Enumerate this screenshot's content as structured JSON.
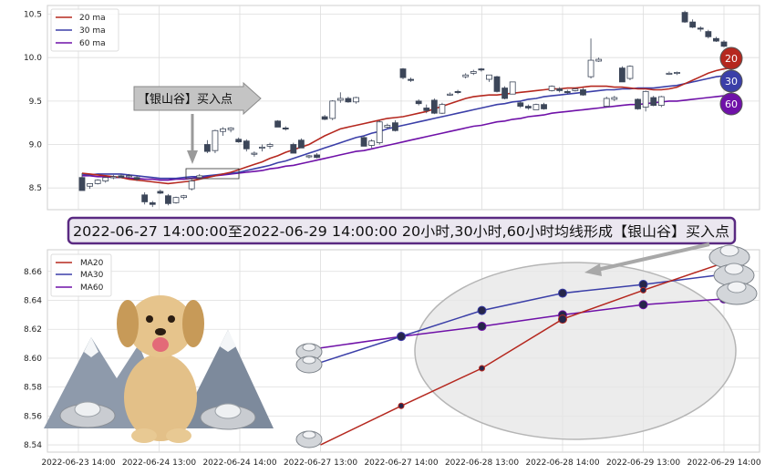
{
  "colors": {
    "ma20": "#b5281f",
    "ma30": "#3b3fa8",
    "ma60": "#6f11a8",
    "candle_dark": "#3c4659",
    "banner_border": "#5a2a82",
    "banner_fill": "#ebe7f0",
    "grid": "#dddddd"
  },
  "chart_data": [
    {
      "type": "candlestick",
      "legend": [
        "20 ma",
        "30 ma",
        "60 ma"
      ],
      "legend_position": "top-left",
      "ylim": [
        8.25,
        10.6
      ],
      "yticks": [
        "10.5",
        "10.0",
        "9.5",
        "9.0",
        "8.5"
      ],
      "grid": true,
      "callout_label": "【银山谷】买入点",
      "end_markers": [
        "20",
        "30",
        "60"
      ],
      "candles": [
        {
          "o": 8.62,
          "h": 8.67,
          "l": 8.48,
          "c": 8.47
        },
        {
          "o": 8.52,
          "h": 8.55,
          "l": 8.49,
          "c": 8.55
        },
        {
          "o": 8.55,
          "h": 8.6,
          "l": 8.54,
          "c": 8.59
        },
        {
          "o": 8.58,
          "h": 8.63,
          "l": 8.56,
          "c": 8.62
        },
        {
          "o": 8.62,
          "h": 8.65,
          "l": 8.6,
          "c": 8.63
        },
        {
          "o": 8.64,
          "h": 8.66,
          "l": 8.62,
          "c": 8.62
        },
        {
          "o": 8.63,
          "h": 8.66,
          "l": 8.61,
          "c": 8.64
        },
        {
          "o": 8.62,
          "h": 8.64,
          "l": 8.58,
          "c": 8.6
        },
        {
          "o": 8.42,
          "h": 8.45,
          "l": 8.31,
          "c": 8.34
        },
        {
          "o": 8.33,
          "h": 8.35,
          "l": 8.28,
          "c": 8.31
        },
        {
          "o": 8.46,
          "h": 8.48,
          "l": 8.43,
          "c": 8.44
        },
        {
          "o": 8.41,
          "h": 8.43,
          "l": 8.3,
          "c": 8.32
        },
        {
          "o": 8.33,
          "h": 8.4,
          "l": 8.32,
          "c": 8.39
        },
        {
          "o": 8.39,
          "h": 8.42,
          "l": 8.37,
          "c": 8.41
        },
        {
          "o": 8.49,
          "h": 8.6,
          "l": 8.47,
          "c": 8.58
        },
        {
          "o": 8.62,
          "h": 8.66,
          "l": 8.6,
          "c": 8.64
        },
        {
          "o": 9.0,
          "h": 9.05,
          "l": 8.9,
          "c": 8.92
        },
        {
          "o": 8.93,
          "h": 9.17,
          "l": 8.9,
          "c": 9.16
        },
        {
          "o": 9.15,
          "h": 9.2,
          "l": 9.1,
          "c": 9.18
        },
        {
          "o": 9.17,
          "h": 9.2,
          "l": 9.14,
          "c": 9.19
        },
        {
          "o": 9.06,
          "h": 9.08,
          "l": 9.02,
          "c": 9.03
        },
        {
          "o": 9.04,
          "h": 9.06,
          "l": 8.92,
          "c": 8.95
        },
        {
          "o": 8.89,
          "h": 8.92,
          "l": 8.86,
          "c": 8.9
        },
        {
          "o": 8.96,
          "h": 9.0,
          "l": 8.92,
          "c": 8.97
        },
        {
          "o": 8.98,
          "h": 9.02,
          "l": 8.95,
          "c": 9.0
        },
        {
          "o": 9.27,
          "h": 9.28,
          "l": 9.2,
          "c": 9.2
        },
        {
          "o": 9.19,
          "h": 9.21,
          "l": 9.16,
          "c": 9.18
        },
        {
          "o": 9.0,
          "h": 9.02,
          "l": 8.9,
          "c": 8.9
        },
        {
          "o": 9.05,
          "h": 9.07,
          "l": 8.96,
          "c": 8.96
        },
        {
          "o": 8.86,
          "h": 8.88,
          "l": 8.84,
          "c": 8.87
        },
        {
          "o": 8.88,
          "h": 8.9,
          "l": 8.84,
          "c": 8.85
        },
        {
          "o": 9.32,
          "h": 9.34,
          "l": 9.28,
          "c": 9.29
        },
        {
          "o": 9.3,
          "h": 9.51,
          "l": 9.28,
          "c": 9.5
        },
        {
          "o": 9.51,
          "h": 9.6,
          "l": 9.48,
          "c": 9.53
        },
        {
          "o": 9.53,
          "h": 9.55,
          "l": 9.48,
          "c": 9.49
        },
        {
          "o": 9.49,
          "h": 9.55,
          "l": 9.47,
          "c": 9.54
        },
        {
          "o": 9.08,
          "h": 9.1,
          "l": 8.98,
          "c": 8.98
        },
        {
          "o": 8.99,
          "h": 9.06,
          "l": 8.96,
          "c": 9.04
        },
        {
          "o": 9.02,
          "h": 9.28,
          "l": 9.0,
          "c": 9.26
        },
        {
          "o": 9.2,
          "h": 9.24,
          "l": 9.18,
          "c": 9.22
        },
        {
          "o": 9.25,
          "h": 9.28,
          "l": 9.15,
          "c": 9.16
        },
        {
          "o": 9.87,
          "h": 9.88,
          "l": 9.75,
          "c": 9.77
        },
        {
          "o": 9.75,
          "h": 9.77,
          "l": 9.72,
          "c": 9.74
        },
        {
          "o": 9.5,
          "h": 9.52,
          "l": 9.45,
          "c": 9.47
        },
        {
          "o": 9.42,
          "h": 9.46,
          "l": 9.36,
          "c": 9.39
        },
        {
          "o": 9.51,
          "h": 9.53,
          "l": 9.35,
          "c": 9.36
        },
        {
          "o": 9.36,
          "h": 9.48,
          "l": 9.35,
          "c": 9.46
        },
        {
          "o": 9.58,
          "h": 9.6,
          "l": 9.56,
          "c": 9.58
        },
        {
          "o": 9.61,
          "h": 9.63,
          "l": 9.58,
          "c": 9.6
        },
        {
          "o": 9.78,
          "h": 9.82,
          "l": 9.76,
          "c": 9.8
        },
        {
          "o": 9.82,
          "h": 9.86,
          "l": 9.8,
          "c": 9.84
        },
        {
          "o": 9.87,
          "h": 9.88,
          "l": 9.84,
          "c": 9.86
        },
        {
          "o": 9.75,
          "h": 9.8,
          "l": 9.72,
          "c": 9.8
        },
        {
          "o": 9.78,
          "h": 9.79,
          "l": 9.6,
          "c": 9.61
        },
        {
          "o": 9.65,
          "h": 9.67,
          "l": 9.52,
          "c": 9.53
        },
        {
          "o": 9.58,
          "h": 9.72,
          "l": 9.58,
          "c": 9.72
        },
        {
          "o": 9.48,
          "h": 9.5,
          "l": 9.42,
          "c": 9.44
        },
        {
          "o": 9.44,
          "h": 9.46,
          "l": 9.4,
          "c": 9.42
        },
        {
          "o": 9.4,
          "h": 9.47,
          "l": 9.4,
          "c": 9.46
        },
        {
          "o": 9.46,
          "h": 9.48,
          "l": 9.4,
          "c": 9.41
        },
        {
          "o": 9.62,
          "h": 9.68,
          "l": 9.61,
          "c": 9.67
        },
        {
          "o": 9.64,
          "h": 9.66,
          "l": 9.6,
          "c": 9.62
        },
        {
          "o": 9.61,
          "h": 9.63,
          "l": 9.58,
          "c": 9.6
        },
        {
          "o": 9.62,
          "h": 9.65,
          "l": 9.61,
          "c": 9.64
        },
        {
          "o": 9.63,
          "h": 9.65,
          "l": 9.56,
          "c": 9.57
        },
        {
          "o": 9.78,
          "h": 10.22,
          "l": 9.76,
          "c": 9.97
        },
        {
          "o": 9.96,
          "h": 10.0,
          "l": 9.95,
          "c": 9.98
        },
        {
          "o": 9.44,
          "h": 9.55,
          "l": 9.43,
          "c": 9.53
        },
        {
          "o": 9.52,
          "h": 9.56,
          "l": 9.5,
          "c": 9.54
        },
        {
          "o": 9.88,
          "h": 9.9,
          "l": 9.72,
          "c": 9.72
        },
        {
          "o": 9.76,
          "h": 9.91,
          "l": 9.74,
          "c": 9.9
        },
        {
          "o": 9.52,
          "h": 9.53,
          "l": 9.4,
          "c": 9.41
        },
        {
          "o": 9.43,
          "h": 9.62,
          "l": 9.38,
          "c": 9.61
        },
        {
          "o": 9.54,
          "h": 9.56,
          "l": 9.44,
          "c": 9.45
        },
        {
          "o": 9.45,
          "h": 9.56,
          "l": 9.43,
          "c": 9.55
        },
        {
          "o": 9.81,
          "h": 9.84,
          "l": 9.8,
          "c": 9.82
        },
        {
          "o": 9.82,
          "h": 9.84,
          "l": 9.8,
          "c": 9.83
        },
        {
          "o": 10.52,
          "h": 10.54,
          "l": 10.4,
          "c": 10.41
        },
        {
          "o": 10.41,
          "h": 10.44,
          "l": 10.34,
          "c": 10.35
        },
        {
          "o": 10.34,
          "h": 10.36,
          "l": 10.3,
          "c": 10.33
        },
        {
          "o": 10.3,
          "h": 10.32,
          "l": 10.22,
          "c": 10.24
        },
        {
          "o": 10.22,
          "h": 10.24,
          "l": 10.18,
          "c": 10.19
        },
        {
          "o": 10.18,
          "h": 10.2,
          "l": 10.12,
          "c": 10.13
        }
      ],
      "ma20": [
        8.67,
        8.66,
        8.65,
        8.64,
        8.63,
        8.62,
        8.6,
        8.59,
        8.58,
        8.57,
        8.56,
        8.55,
        8.56,
        8.57,
        8.58,
        8.6,
        8.62,
        8.64,
        8.66,
        8.68,
        8.71,
        8.74,
        8.77,
        8.8,
        8.84,
        8.87,
        8.91,
        8.94,
        8.97,
        9.0,
        9.05,
        9.1,
        9.14,
        9.18,
        9.2,
        9.22,
        9.24,
        9.26,
        9.28,
        9.3,
        9.31,
        9.32,
        9.34,
        9.36,
        9.38,
        9.41,
        9.44,
        9.47,
        9.5,
        9.53,
        9.55,
        9.56,
        9.57,
        9.57,
        9.58,
        9.59,
        9.6,
        9.61,
        9.62,
        9.63,
        9.64,
        9.64,
        9.65,
        9.65,
        9.66,
        9.67,
        9.67,
        9.67,
        9.66,
        9.66,
        9.65,
        9.64,
        9.64,
        9.63,
        9.63,
        9.64,
        9.66,
        9.7,
        9.74,
        9.78,
        9.82,
        9.85,
        9.87,
        9.88
      ],
      "ma30": [
        8.66,
        8.65,
        8.66,
        8.66,
        8.66,
        8.66,
        8.65,
        8.64,
        8.63,
        8.62,
        8.61,
        8.61,
        8.61,
        8.62,
        8.63,
        8.63,
        8.64,
        8.65,
        8.66,
        8.67,
        8.68,
        8.7,
        8.72,
        8.74,
        8.76,
        8.79,
        8.81,
        8.84,
        8.87,
        8.9,
        8.93,
        8.96,
        8.99,
        9.02,
        9.05,
        9.08,
        9.1,
        9.13,
        9.15,
        9.18,
        9.2,
        9.22,
        9.24,
        9.26,
        9.28,
        9.3,
        9.32,
        9.34,
        9.36,
        9.38,
        9.4,
        9.42,
        9.44,
        9.46,
        9.47,
        9.49,
        9.5,
        9.52,
        9.53,
        9.55,
        9.56,
        9.57,
        9.58,
        9.59,
        9.6,
        9.61,
        9.62,
        9.63,
        9.63,
        9.64,
        9.64,
        9.65,
        9.65,
        9.65,
        9.66,
        9.67,
        9.68,
        9.7,
        9.72,
        9.74,
        9.76,
        9.78,
        9.79,
        9.8
      ],
      "ma60": [
        8.64,
        8.64,
        8.63,
        8.63,
        8.62,
        8.62,
        8.61,
        8.61,
        8.6,
        8.6,
        8.59,
        8.59,
        8.6,
        8.6,
        8.61,
        8.62,
        8.63,
        8.64,
        8.65,
        8.66,
        8.67,
        8.68,
        8.69,
        8.7,
        8.72,
        8.73,
        8.75,
        8.76,
        8.78,
        8.8,
        8.82,
        8.84,
        8.86,
        8.88,
        8.9,
        8.92,
        8.93,
        8.95,
        8.97,
        8.99,
        9.01,
        9.03,
        9.05,
        9.07,
        9.09,
        9.11,
        9.13,
        9.15,
        9.17,
        9.19,
        9.21,
        9.22,
        9.24,
        9.26,
        9.27,
        9.29,
        9.3,
        9.32,
        9.33,
        9.34,
        9.36,
        9.37,
        9.38,
        9.39,
        9.4,
        9.41,
        9.42,
        9.43,
        9.44,
        9.45,
        9.46,
        9.46,
        9.47,
        9.48,
        9.49,
        9.5,
        9.5,
        9.51,
        9.52,
        9.53,
        9.54,
        9.55,
        9.56,
        9.56
      ]
    },
    {
      "type": "line",
      "legend": [
        "MA20",
        "MA30",
        "MA60"
      ],
      "legend_position": "top-left",
      "ylim": [
        8.535,
        8.675
      ],
      "yticks": [
        8.54,
        8.56,
        8.58,
        8.6,
        8.62,
        8.64,
        8.66
      ],
      "x_tick_labels": [
        "2022-06-23 14:00",
        "2022-06-24 13:00",
        "2022-06-24 14:00",
        "2022-06-27 13:00",
        "2022-06-27 14:00",
        "2022-06-28 13:00",
        "2022-06-28 14:00",
        "2022-06-29 13:00",
        "2022-06-29 14:00"
      ],
      "grid": true,
      "series": [
        {
          "name": "MA20",
          "x_index": [
            3,
            4,
            5,
            6,
            7,
            8
          ],
          "values": [
            8.54,
            8.567,
            8.593,
            8.627,
            8.647,
            8.666
          ]
        },
        {
          "name": "MA30",
          "x_index": [
            3,
            4,
            5,
            6,
            7,
            8
          ],
          "values": [
            8.597,
            8.615,
            8.633,
            8.645,
            8.651,
            8.658
          ]
        },
        {
          "name": "MA60",
          "x_index": [
            3,
            4,
            5,
            6,
            7,
            8
          ],
          "values": [
            8.607,
            8.615,
            8.622,
            8.63,
            8.637,
            8.641
          ]
        }
      ]
    }
  ],
  "banner_text": "2022-06-27 14:00:00至2022-06-29 14:00:00 20小时,30小时,60小时均线形成【银山谷】买入点"
}
